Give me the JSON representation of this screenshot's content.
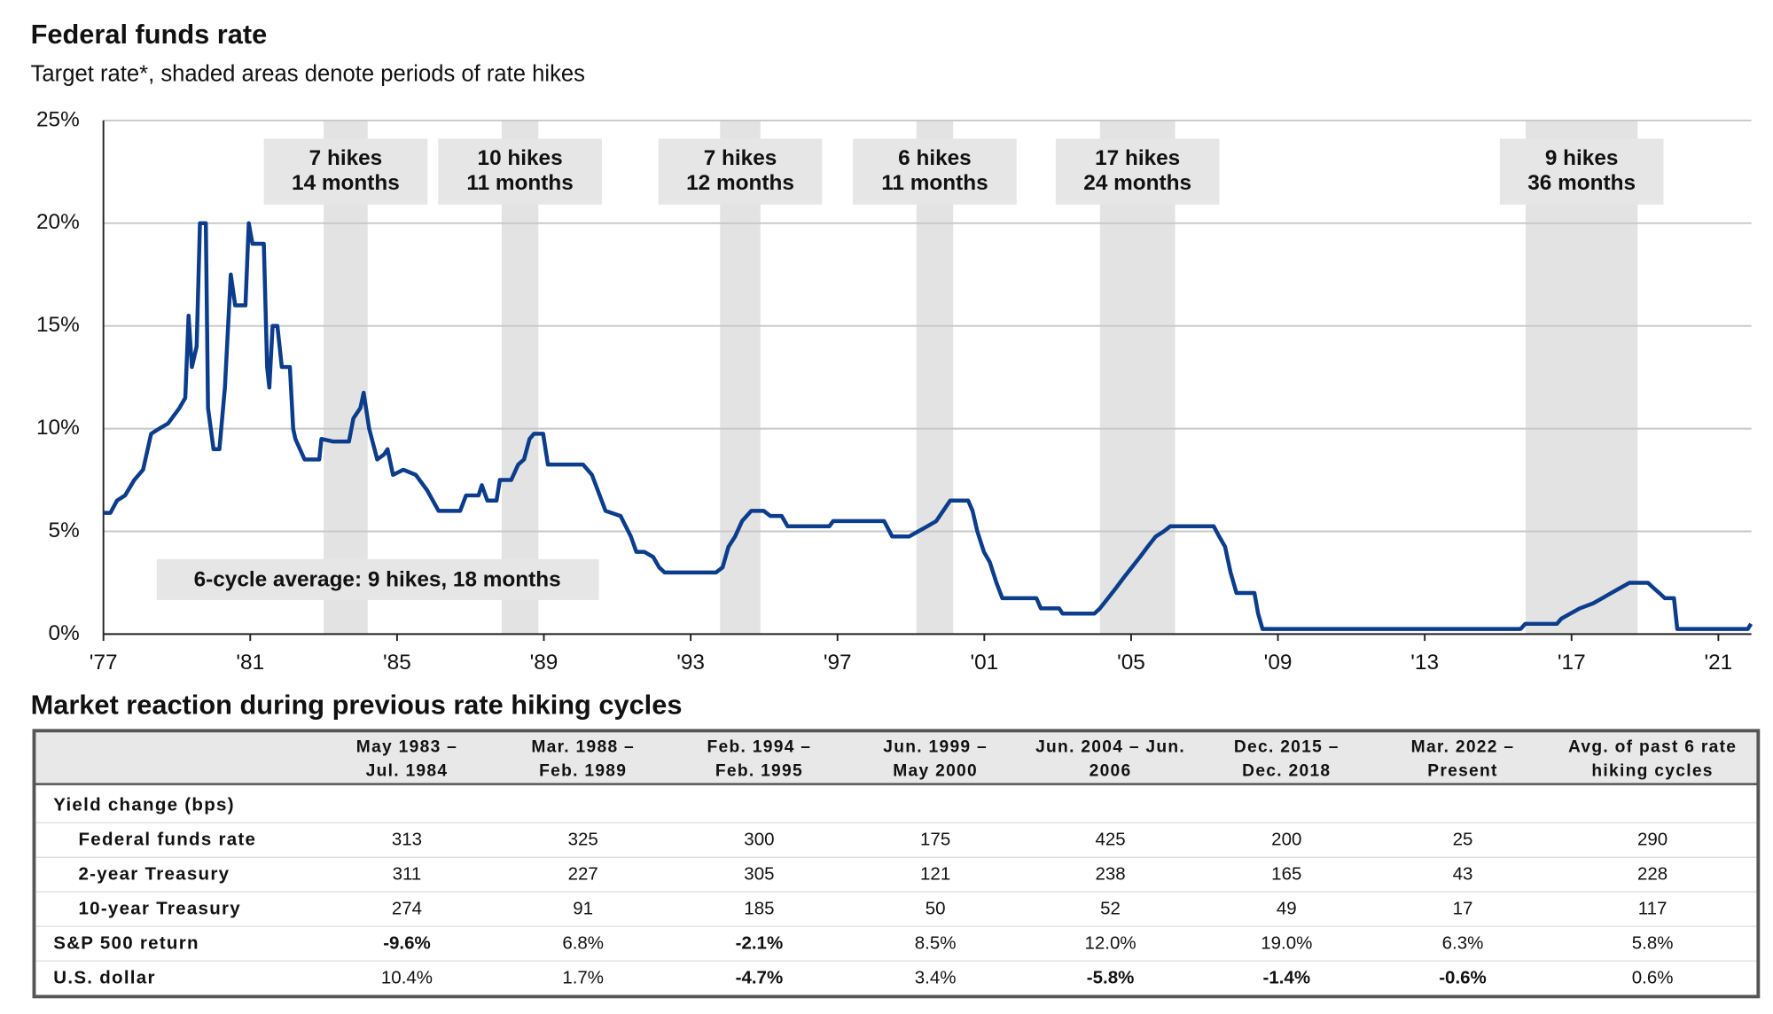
{
  "chart_data": {
    "type": "line",
    "title": "Federal funds rate",
    "subtitle": "Target rate*, shaded areas denote periods of rate hikes",
    "xlim": [
      1977,
      2021.9
    ],
    "xticks": [
      {
        "value": 1977,
        "label": "'77"
      },
      {
        "value": 1981,
        "label": "'81"
      },
      {
        "value": 1985,
        "label": "'85"
      },
      {
        "value": 1989,
        "label": "'89"
      },
      {
        "value": 1993,
        "label": "'93"
      },
      {
        "value": 1997,
        "label": "'97"
      },
      {
        "value": 2001,
        "label": "'01"
      },
      {
        "value": 2005,
        "label": "'05"
      },
      {
        "value": 2009,
        "label": "'09"
      },
      {
        "value": 2013,
        "label": "'13"
      },
      {
        "value": 2017,
        "label": "'17"
      },
      {
        "value": 2021,
        "label": "'21"
      }
    ],
    "ylim": [
      0,
      25
    ],
    "yticks": [
      {
        "value": 0,
        "label": "0%"
      },
      {
        "value": 5,
        "label": "5%"
      },
      {
        "value": 10,
        "label": "10%"
      },
      {
        "value": 15,
        "label": "15%"
      },
      {
        "value": 20,
        "label": "20%"
      },
      {
        "value": 25,
        "label": "25%"
      }
    ],
    "grid": true,
    "hike_periods": [
      {
        "start": 1983.0,
        "end": 1984.2,
        "label": [
          "7 hikes",
          "14 months"
        ]
      },
      {
        "start": 1987.85,
        "end": 1988.85,
        "label": [
          "10 hikes",
          "11 months"
        ]
      },
      {
        "start": 1993.8,
        "end": 1994.9,
        "label": [
          "7 hikes",
          "12 months"
        ]
      },
      {
        "start": 1999.15,
        "end": 2000.15,
        "label": [
          "6 hikes",
          "11 months"
        ]
      },
      {
        "start": 2004.15,
        "end": 2006.2,
        "label": [
          "17 hikes",
          "24 months"
        ]
      },
      {
        "start": 2015.75,
        "end": 2018.8,
        "label": [
          "9 hikes",
          "36 months"
        ]
      }
    ],
    "shade_color": "#e3e3e3",
    "annotation": "6-cycle average: 9 hikes, 18 months",
    "series": [
      {
        "name": "Federal funds rate",
        "color": "#0b3d8c",
        "x": [
          1977.0,
          1977.19,
          1977.37,
          1977.59,
          1977.84,
          1978.08,
          1978.3,
          1978.52,
          1978.76,
          1979.07,
          1979.23,
          1979.32,
          1979.41,
          1979.54,
          1979.63,
          1979.79,
          1979.85,
          1980.0,
          1980.16,
          1980.31,
          1980.47,
          1980.59,
          1980.87,
          1980.96,
          1981.06,
          1981.37,
          1981.46,
          1981.52,
          1981.61,
          1981.74,
          1981.86,
          1982.08,
          1982.17,
          1982.23,
          1982.48,
          1982.88,
          1982.94,
          1983.25,
          1983.69,
          1983.81,
          1984.0,
          1984.09,
          1984.24,
          1984.46,
          1984.65,
          1984.74,
          1984.89,
          1985.17,
          1985.51,
          1985.82,
          1986.13,
          1986.72,
          1986.88,
          1987.22,
          1987.31,
          1987.46,
          1987.71,
          1987.8,
          1988.11,
          1988.3,
          1988.46,
          1988.61,
          1988.73,
          1988.98,
          1989.11,
          1990.07,
          1990.31,
          1990.68,
          1991.09,
          1991.37,
          1991.52,
          1991.74,
          1991.98,
          1992.14,
          1992.29,
          1993.69,
          1993.87,
          1994.03,
          1994.21,
          1994.4,
          1994.65,
          1994.99,
          1995.17,
          1995.48,
          1995.64,
          1996.78,
          1996.88,
          1998.27,
          1998.49,
          1998.95,
          1999.2,
          1999.45,
          1999.69,
          1999.88,
          2000.07,
          2000.56,
          2000.68,
          2000.81,
          2000.99,
          2001.15,
          2001.33,
          2001.49,
          2002.42,
          2002.54,
          2003.04,
          2003.13,
          2004.0,
          2004.15,
          2004.37,
          2004.59,
          2004.8,
          2005.02,
          2005.24,
          2005.45,
          2005.67,
          2005.89,
          2006.07,
          2007.25,
          2007.4,
          2007.56,
          2007.71,
          2007.87,
          2008.36,
          2008.46,
          2008.58,
          2015.61,
          2015.74,
          2016.6,
          2016.72,
          2016.97,
          2017.22,
          2017.59,
          2017.84,
          2018.08,
          2018.33,
          2018.58,
          2019.08,
          2019.23,
          2019.39,
          2019.54,
          2019.79,
          2019.88,
          2021.8,
          2021.89
        ],
        "values": [
          5.9,
          5.9,
          6.5,
          6.75,
          7.5,
          8.0,
          9.75,
          10.0,
          10.25,
          11.0,
          11.5,
          15.5,
          13.0,
          14.0,
          20.0,
          20.0,
          11.0,
          9.0,
          9.0,
          12.0,
          17.5,
          16.0,
          16.0,
          20.0,
          19.0,
          19.0,
          13.0,
          12.0,
          15.0,
          15.0,
          13.0,
          13.0,
          10.0,
          9.5,
          8.5,
          8.5,
          9.5,
          9.375,
          9.375,
          10.5,
          11.0,
          11.75,
          10.0,
          8.5,
          8.75,
          9.0,
          7.75,
          8.0,
          7.75,
          7.0,
          6.0,
          6.0,
          6.75,
          6.75,
          7.25,
          6.5,
          6.5,
          7.5,
          7.5,
          8.25,
          8.5,
          9.5,
          9.75,
          9.75,
          8.25,
          8.25,
          7.75,
          6.0,
          5.75,
          4.75,
          4.0,
          4.0,
          3.75,
          3.25,
          3.0,
          3.0,
          3.25,
          4.25,
          4.75,
          5.5,
          6.0,
          6.0,
          5.75,
          5.75,
          5.25,
          5.25,
          5.5,
          5.5,
          4.75,
          4.75,
          5.0,
          5.25,
          5.5,
          6.0,
          6.5,
          6.5,
          6.0,
          5.0,
          4.0,
          3.5,
          2.5,
          1.75,
          1.75,
          1.25,
          1.25,
          1.0,
          1.0,
          1.25,
          1.75,
          2.25,
          2.75,
          3.25,
          3.75,
          4.25,
          4.75,
          5.0,
          5.25,
          5.25,
          4.75,
          4.25,
          3.0,
          2.0,
          2.0,
          1.0,
          0.25,
          0.25,
          0.5,
          0.5,
          0.75,
          1.0,
          1.25,
          1.5,
          1.75,
          2.0,
          2.25,
          2.5,
          2.5,
          2.25,
          2.0,
          1.75,
          1.75,
          0.25,
          0.25,
          0.5
        ]
      }
    ]
  },
  "table": {
    "title": "Market reaction during previous rate hiking cycles",
    "columns": [
      [
        "May 1983 –",
        "Jul. 1984"
      ],
      [
        "Mar. 1988 –",
        "Feb. 1989"
      ],
      [
        "Feb. 1994 –",
        "Feb. 1995"
      ],
      [
        "Jun. 1999 –",
        "May 2000"
      ],
      [
        "Jun. 2004 – Jun.",
        "2006"
      ],
      [
        "Dec. 2015 –",
        "Dec. 2018"
      ],
      [
        "Mar. 2022  –",
        "Present"
      ],
      [
        "Avg. of past 6 rate",
        "hiking cycles"
      ]
    ],
    "negative_color": "#e00000",
    "rows": [
      {
        "label": "Yield change (bps)"
      },
      {
        "label": "Federal funds rate",
        "indent": true,
        "values": [
          "313",
          "325",
          "300",
          "175",
          "425",
          "200",
          "25",
          "290"
        ]
      },
      {
        "label": "2-year Treasury",
        "indent": true,
        "values": [
          "311",
          "227",
          "305",
          "121",
          "238",
          "165",
          "43",
          "228"
        ]
      },
      {
        "label": "10-year Treasury",
        "indent": true,
        "values": [
          "274",
          "91",
          "185",
          "50",
          "52",
          "49",
          "17",
          "117"
        ]
      },
      {
        "label": "S&P 500 return",
        "values": [
          "-9.6%",
          "6.8%",
          "-2.1%",
          "8.5%",
          "12.0%",
          "19.0%",
          "6.3%",
          "5.8%"
        ]
      },
      {
        "label": "U.S. dollar",
        "values": [
          "10.4%",
          "1.7%",
          "-4.7%",
          "3.4%",
          "-5.8%",
          "-1.4%",
          "-0.6%",
          "0.6%"
        ]
      }
    ]
  }
}
